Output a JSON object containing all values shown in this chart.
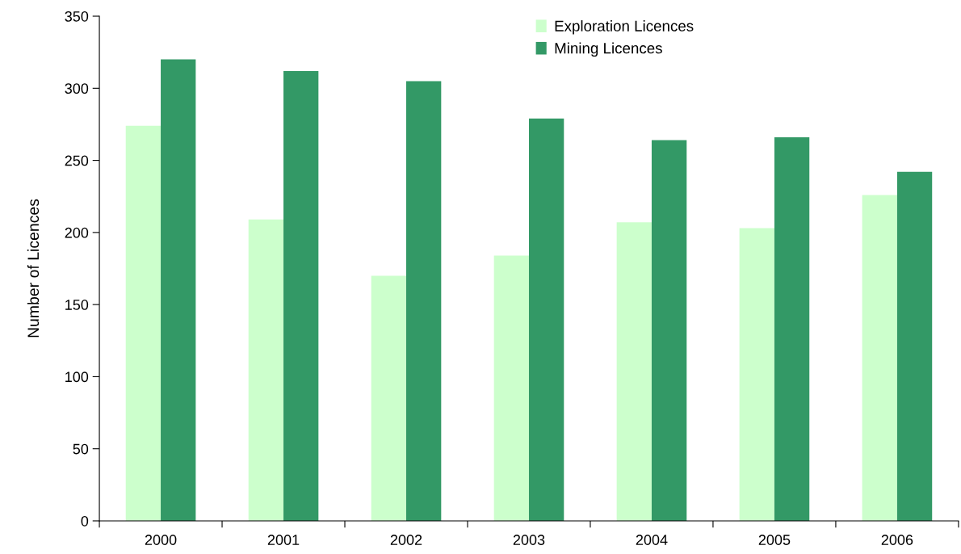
{
  "chart_data": {
    "type": "bar",
    "ylabel": "Number of Licences",
    "categories": [
      "2000",
      "2001",
      "2002",
      "2003",
      "2004",
      "2005",
      "2006"
    ],
    "series": [
      {
        "name": "Exploration Licences",
        "color": "#ccffcc",
        "values": [
          274,
          209,
          170,
          184,
          207,
          203,
          226
        ]
      },
      {
        "name": "Mining Licences",
        "color": "#339966",
        "values": [
          320,
          312,
          305,
          279,
          264,
          266,
          242
        ]
      }
    ],
    "ylim": [
      0,
      350
    ],
    "yticks": [
      0,
      50,
      100,
      150,
      200,
      250,
      300,
      350
    ],
    "grid": false,
    "legend": "top"
  }
}
